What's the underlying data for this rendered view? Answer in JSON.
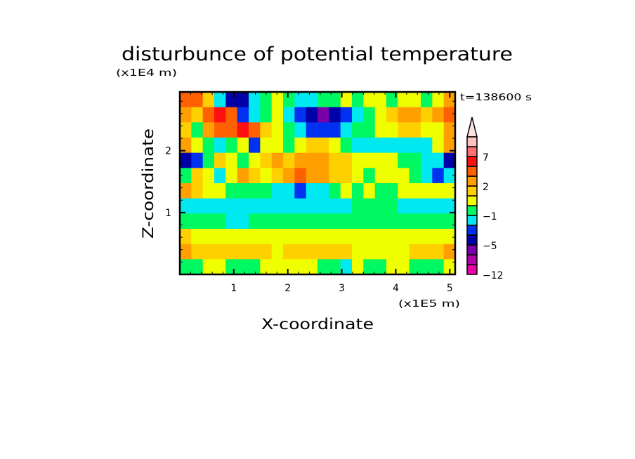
{
  "chart_data": {
    "type": "heatmap",
    "title": "disturbunce of potential temperature",
    "xlabel": "X-coordinate",
    "ylabel": "Z-coordinate",
    "x_unit": "(x1E5 m)",
    "y_unit": "(x1E4 m)",
    "time_label": "t=138600 s",
    "xlim": [
      0,
      5.1
    ],
    "ylim": [
      0,
      2.95
    ],
    "x_ticks": [
      1,
      2,
      3,
      4,
      5
    ],
    "x_tick_labels": [
      "1",
      "2",
      "3",
      "4",
      "5"
    ],
    "y_ticks": [
      1,
      2
    ],
    "y_tick_labels": [
      "1",
      "2"
    ],
    "colorbar": {
      "levels": [
        -12,
        -10,
        -7,
        -5,
        -3,
        -2,
        -1,
        0,
        1,
        2,
        3,
        5,
        7,
        10,
        15
      ],
      "colors": [
        "#e800a8",
        "#b000a8",
        "#7800a8",
        "#0000a8",
        "#0030f0",
        "#00e8f0",
        "#00f860",
        "#f0ff00",
        "#ffd000",
        "#ffa000",
        "#ff6000",
        "#ff1010",
        "#ff7070",
        "#ffc0c0"
      ],
      "extend_color": "#ffe0e0",
      "labels": [
        {
          "value": 7,
          "text": "7"
        },
        {
          "value": 2,
          "text": "2"
        },
        {
          "value": -1,
          "text": "−1"
        },
        {
          "value": -5,
          "text": "−5"
        },
        {
          "value": -12,
          "text": "−12"
        }
      ]
    },
    "grid_note_rows_top_to_bottom": true,
    "grid": [
      [
        4,
        4,
        1.5,
        -1.5,
        -4,
        -4,
        -1.5,
        -0.5,
        0.5,
        -0.5,
        -1.5,
        -1.5,
        -0.5,
        -0.5,
        0.5,
        -0.5,
        0.5,
        0.5,
        -0.5,
        0.5,
        0.5,
        -0.5,
        0.5,
        2.5
      ],
      [
        2.5,
        1.5,
        4,
        6,
        4,
        -2.5,
        -1.5,
        -0.5,
        0.5,
        -1.5,
        -2.5,
        -4,
        -6,
        -4,
        -2.5,
        -1.5,
        -0.5,
        0.5,
        1.5,
        2.5,
        2.5,
        1.5,
        2.5,
        4
      ],
      [
        1.5,
        -0.5,
        2.5,
        4,
        4,
        6,
        4,
        1.5,
        0.5,
        -0.5,
        -1.5,
        -2.5,
        -2.5,
        -2.5,
        -1.5,
        -0.5,
        -0.5,
        0.5,
        0.5,
        1.5,
        1.5,
        0.5,
        0.5,
        2.5
      ],
      [
        2.5,
        0.5,
        -0.5,
        -1.5,
        -0.5,
        0.5,
        -2.5,
        0.5,
        0.5,
        -0.5,
        0.5,
        1.5,
        1.5,
        0.5,
        -0.5,
        -1.5,
        -1.5,
        -1.5,
        -1.5,
        -1.5,
        -1.5,
        -1.5,
        0.5,
        2.5
      ],
      [
        -4,
        -2.5,
        -0.5,
        1.5,
        0.5,
        -0.5,
        0.5,
        1.5,
        2.5,
        1.5,
        2.5,
        2.5,
        2.5,
        1.5,
        1.5,
        0.5,
        0.5,
        0.5,
        0.5,
        -0.5,
        -0.5,
        -1.5,
        -1.5,
        -4
      ],
      [
        -0.5,
        1.5,
        0.5,
        -1.5,
        0.5,
        2.5,
        1.5,
        0.5,
        1.5,
        2.5,
        4,
        2.5,
        2.5,
        1.5,
        1.5,
        0.5,
        -0.5,
        0.5,
        0.5,
        0.5,
        -0.5,
        -1.5,
        -2.5,
        -1.5
      ],
      [
        2.5,
        1.5,
        0.5,
        0.5,
        -0.5,
        -0.5,
        -0.5,
        -0.5,
        -1.5,
        -1.5,
        -2.5,
        -1.5,
        -1.5,
        -0.5,
        0.5,
        -0.5,
        0.5,
        -0.5,
        -0.5,
        0.5,
        0.5,
        0.5,
        0.5,
        0.5
      ],
      [
        -1.5,
        -1.5,
        -1.5,
        -1.5,
        -1.5,
        -1.5,
        -1.5,
        -1.5,
        -1.5,
        -1.5,
        -1.5,
        -1.5,
        -1.5,
        -1.5,
        -1.5,
        -0.5,
        -0.5,
        -0.5,
        -0.5,
        -1.5,
        -1.5,
        -1.5,
        -1.5,
        -1.5
      ],
      [
        -0.5,
        -0.5,
        -0.5,
        -0.5,
        -1.5,
        -1.5,
        -0.5,
        -0.5,
        -0.5,
        -0.5,
        -0.5,
        -0.5,
        -0.5,
        -0.5,
        -0.5,
        -0.5,
        -0.5,
        -0.5,
        -0.5,
        -0.5,
        -0.5,
        -0.5,
        -0.5,
        -0.5
      ],
      [
        1.5,
        0.5,
        0.5,
        0.5,
        0.5,
        0.5,
        0.5,
        0.5,
        0.5,
        0.5,
        0.5,
        0.5,
        0.5,
        0.5,
        0.5,
        0.5,
        0.5,
        0.5,
        0.5,
        0.5,
        0.5,
        0.5,
        0.5,
        0.5
      ],
      [
        2.5,
        1.5,
        1.5,
        1.5,
        1.5,
        1.5,
        1.5,
        1.5,
        0.5,
        1.5,
        1.5,
        1.5,
        1.5,
        1.5,
        1.5,
        0.5,
        0.5,
        0.5,
        0.5,
        0.5,
        1.5,
        1.5,
        1.5,
        2.5
      ],
      [
        -0.5,
        -0.5,
        0.5,
        0.5,
        -0.5,
        -0.5,
        -0.5,
        0.5,
        0.5,
        0.5,
        0.5,
        0.5,
        -0.5,
        -0.5,
        -1.5,
        0.5,
        -0.5,
        -0.5,
        0.5,
        0.5,
        -0.5,
        -0.5,
        -0.5,
        0.5
      ]
    ]
  }
}
